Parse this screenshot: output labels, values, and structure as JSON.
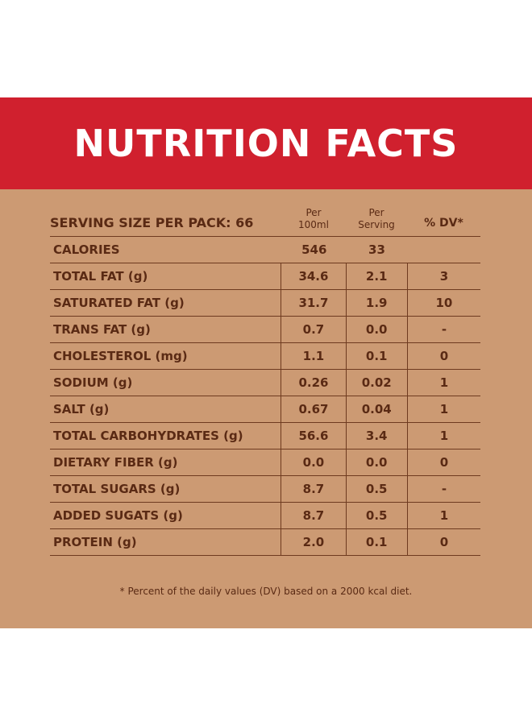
{
  "title": "NUTRITION FACTS",
  "header": {
    "serving_size": "SERVING SIZE PER PACK: 66",
    "per_100ml_line1": "Per",
    "per_100ml_line2": "100ml",
    "per_serving_line1": "Per",
    "per_serving_line2": "Serving",
    "dv": "% DV*"
  },
  "rows": [
    {
      "name": "CALORIES",
      "per_100ml": "546",
      "per_serving": "33",
      "dv": ""
    },
    {
      "name": "TOTAL FAT (g)",
      "per_100ml": "34.6",
      "per_serving": "2.1",
      "dv": "3"
    },
    {
      "name": "SATURATED FAT (g)",
      "per_100ml": "31.7",
      "per_serving": "1.9",
      "dv": "10"
    },
    {
      "name": "TRANS FAT (g)",
      "per_100ml": "0.7",
      "per_serving": "0.0",
      "dv": "-"
    },
    {
      "name": "CHOLESTEROL (mg)",
      "per_100ml": "1.1",
      "per_serving": "0.1",
      "dv": "0"
    },
    {
      "name": "SODIUM (g)",
      "per_100ml": "0.26",
      "per_serving": "0.02",
      "dv": "1"
    },
    {
      "name": "SALT (g)",
      "per_100ml": "0.67",
      "per_serving": "0.04",
      "dv": "1"
    },
    {
      "name": "TOTAL CARBOHYDRATES (g)",
      "per_100ml": "56.6",
      "per_serving": "3.4",
      "dv": "1"
    },
    {
      "name": "DIETARY FIBER (g)",
      "per_100ml": "0.0",
      "per_serving": "0.0",
      "dv": "0"
    },
    {
      "name": "TOTAL SUGARS (g)",
      "per_100ml": "8.7",
      "per_serving": "0.5",
      "dv": "-"
    },
    {
      "name": "ADDED SUGATS (g)",
      "per_100ml": "8.7",
      "per_serving": "0.5",
      "dv": "1"
    },
    {
      "name": "PROTEIN (g)",
      "per_100ml": "2.0",
      "per_serving": "0.1",
      "dv": "0"
    }
  ],
  "footnote": "* Percent of the daily values (DV) based on a 2000 kcal diet.",
  "colors": {
    "banner": "#d0202e",
    "panel": "#cc9a73",
    "text": "#5a2a14"
  }
}
